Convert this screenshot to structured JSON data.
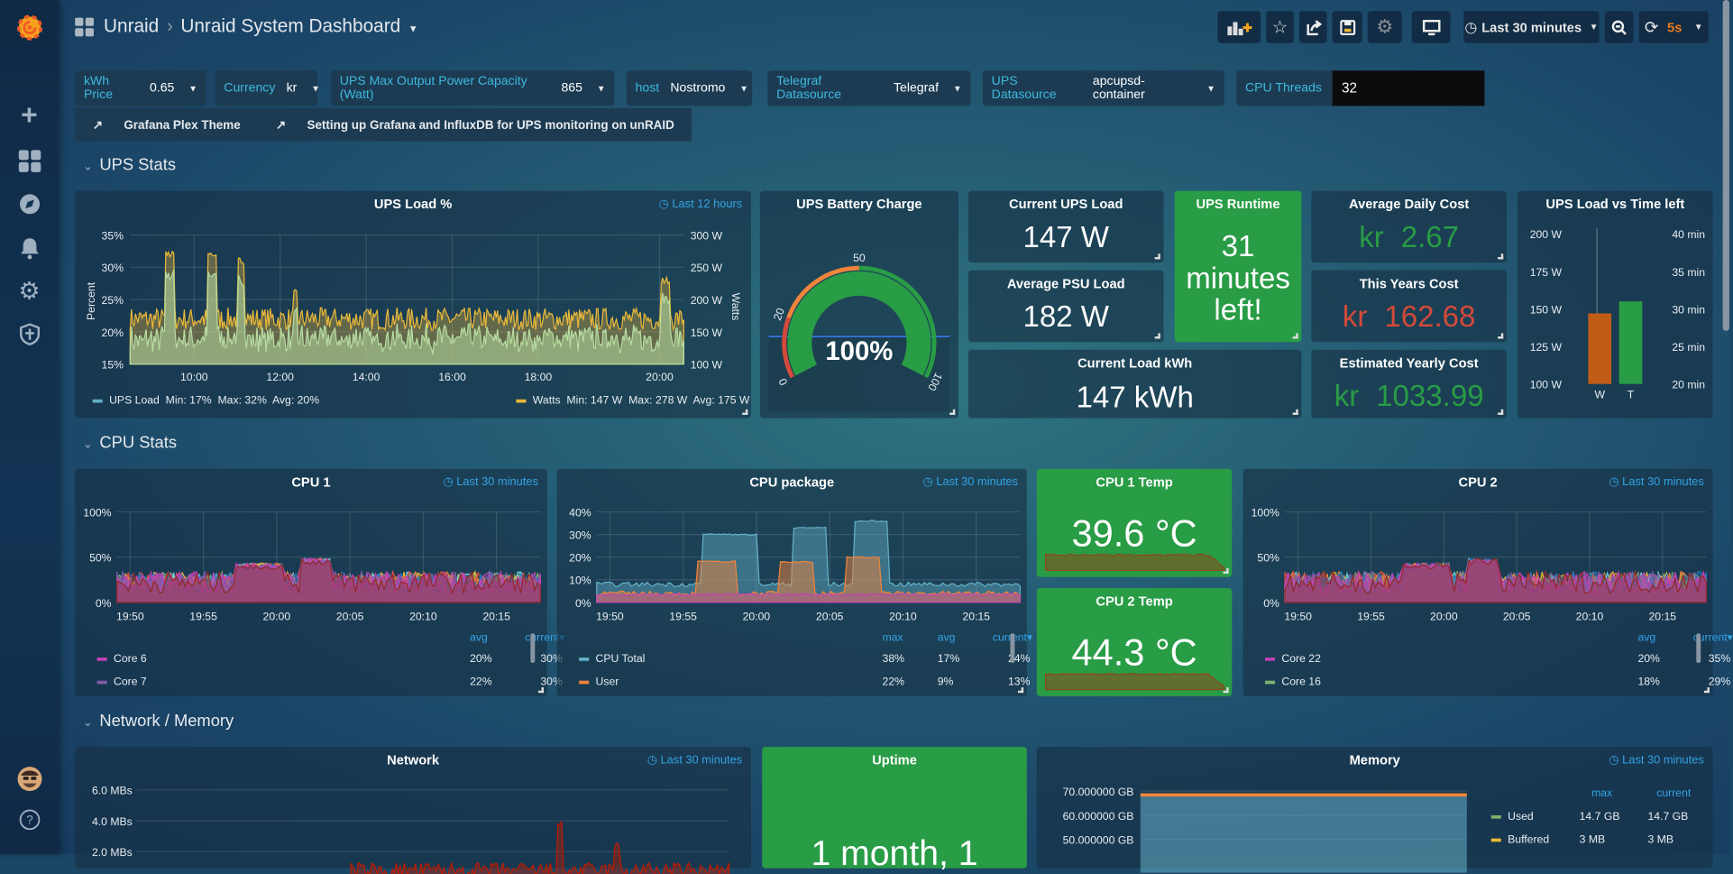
{
  "app": {
    "breadcrumb_folder": "Unraid",
    "breadcrumb_sep": "›",
    "dashboard_title": "Unraid System Dashboard"
  },
  "toolbar": {
    "time_range": "Last 30 minutes",
    "refresh_interval": "5s"
  },
  "variables": [
    {
      "label": "kWh Price",
      "value": "0.65"
    },
    {
      "label": "Currency",
      "value": "kr"
    },
    {
      "label": "UPS Max Output Power Capacity (Watt)",
      "value": "865"
    },
    {
      "label": "host",
      "value": "Nostromo"
    },
    {
      "label": "Telegraf Datasource",
      "value": "Telegraf"
    },
    {
      "label": "UPS Datasource",
      "value": "apcupsd-container"
    },
    {
      "label": "CPU Threads",
      "value": "32"
    }
  ],
  "links": [
    "Grafana Plex Theme",
    "Setting up Grafana and InfluxDB for UPS monitoring on unRAID"
  ],
  "rows": [
    "UPS Stats",
    "CPU Stats",
    "Network / Memory"
  ],
  "ups_load": {
    "title": "UPS Load %",
    "time": "Last 12 hours",
    "ylabel_left": "Percent",
    "ylabel_right": "Watts",
    "yticks_left": [
      "35%",
      "30%",
      "25%",
      "20%",
      "15%"
    ],
    "yticks_right": [
      "300 W",
      "250 W",
      "200 W",
      "150 W",
      "100 W"
    ],
    "xticks": [
      "10:00",
      "12:00",
      "14:00",
      "16:00",
      "18:00",
      "20:00"
    ],
    "legend_left": {
      "name": "UPS Load",
      "stats": "Min: 17%  Max: 32%  Avg: 20%"
    },
    "legend_right": {
      "name": "Watts",
      "stats": "Min: 147 W  Max: 278 W  Avg: 175 W"
    },
    "colors": {
      "load": "#9ac48a",
      "watts": "#eab839"
    }
  },
  "battery": {
    "title": "UPS Battery Charge",
    "value": "100%",
    "percent": 100,
    "ticks": [
      "0",
      "20",
      "50",
      "100"
    ]
  },
  "stats": {
    "current_ups_load": {
      "title": "Current UPS Load",
      "value": "147 W"
    },
    "avg_psu_load": {
      "title": "Average PSU Load",
      "value": "182 W"
    },
    "current_load_kwh": {
      "title": "Current Load kWh",
      "value": "147 kWh"
    },
    "ups_runtime": {
      "title": "UPS Runtime",
      "line1": "31",
      "line2": "minutes",
      "line3": "left!"
    },
    "avg_daily_cost": {
      "title": "Average Daily Cost",
      "unit": "kr",
      "value": "2.67",
      "color": "#299c46"
    },
    "this_year_cost": {
      "title": "This Years Cost",
      "unit": "kr",
      "value": "162.68",
      "color": "#d44a3a"
    },
    "est_yearly_cost": {
      "title": "Estimated Yearly Cost",
      "unit": "kr",
      "value": "1033.99",
      "color": "#299c46"
    }
  },
  "load_vs_time": {
    "title": "UPS Load vs Time left",
    "yticks_left": [
      "200 W",
      "175 W",
      "150 W",
      "125 W",
      "100 W"
    ],
    "yticks_right": [
      "40 min",
      "35 min",
      "30 min",
      "25 min",
      "20 min"
    ],
    "bars": [
      {
        "label": "W",
        "value": 147,
        "axis": "left",
        "color": "#c15c17"
      },
      {
        "label": "T",
        "value": 31,
        "axis": "right",
        "color": "#299c46"
      }
    ]
  },
  "cpu1": {
    "title": "CPU 1",
    "time": "Last 30 minutes",
    "yticks": [
      "100%",
      "50%",
      "0%"
    ],
    "xticks": [
      "19:50",
      "19:55",
      "20:00",
      "20:05",
      "20:10",
      "20:15"
    ],
    "legend_headers": [
      "avg",
      "current▾"
    ],
    "legend": [
      {
        "name": "Core 6",
        "color": "#c142b4",
        "avg": "20%",
        "current": "30%"
      },
      {
        "name": "Core 7",
        "color": "#7f5aa6",
        "avg": "22%",
        "current": "30%"
      }
    ]
  },
  "cpu_pkg": {
    "title": "CPU package",
    "time": "Last 30 minutes",
    "yticks": [
      "40%",
      "30%",
      "20%",
      "10%",
      "0%"
    ],
    "xticks": [
      "19:50",
      "19:55",
      "20:00",
      "20:05",
      "20:10",
      "20:15"
    ],
    "legend_headers": [
      "max",
      "avg",
      "current▾"
    ],
    "legend": [
      {
        "name": "CPU Total",
        "color": "#64b0c8",
        "max": "38%",
        "avg": "17%",
        "current": "24%"
      },
      {
        "name": "User",
        "color": "#ef843c",
        "max": "22%",
        "avg": "9%",
        "current": "13%"
      }
    ]
  },
  "cpu1_temp": {
    "title": "CPU 1 Temp",
    "value": "39.6 °C"
  },
  "cpu2_temp": {
    "title": "CPU 2 Temp",
    "value": "44.3 °C"
  },
  "cpu2": {
    "title": "CPU 2",
    "time": "Last 30 minutes",
    "yticks": [
      "100%",
      "50%",
      "0%"
    ],
    "xticks": [
      "19:50",
      "19:55",
      "20:00",
      "20:05",
      "20:10",
      "20:15"
    ],
    "legend_headers": [
      "avg",
      "current▾"
    ],
    "legend": [
      {
        "name": "Core 22",
        "color": "#c142b4",
        "avg": "20%",
        "current": "35%"
      },
      {
        "name": "Core 16",
        "color": "#7eb26d",
        "avg": "18%",
        "current": "29%"
      }
    ]
  },
  "network": {
    "title": "Network",
    "time": "Last 30 minutes",
    "yticks": [
      "6.0 MBs",
      "4.0 MBs",
      "2.0 MBs"
    ]
  },
  "uptime": {
    "title": "Uptime",
    "value": "1 month, 1"
  },
  "memory": {
    "title": "Memory",
    "time": "Last 30 minutes",
    "yticks": [
      "70.000000 GB",
      "60.000000 GB",
      "50.000000 GB"
    ],
    "legend_headers": [
      "max",
      "current"
    ],
    "legend": [
      {
        "name": "Used",
        "color": "#7eb26d",
        "max": "14.7 GB",
        "current": "14.7 GB"
      },
      {
        "name": "Buffered",
        "color": "#eab839",
        "max": "3 MB",
        "current": "3 MB"
      }
    ]
  }
}
